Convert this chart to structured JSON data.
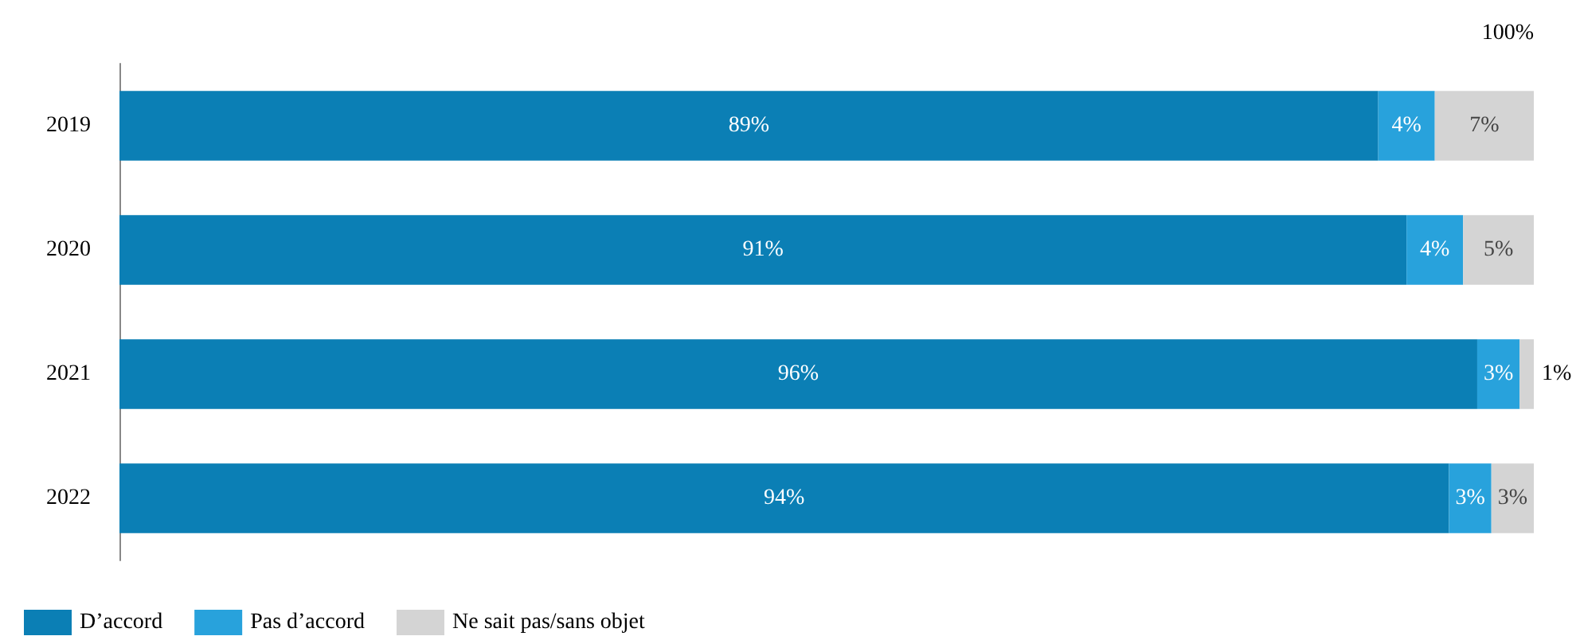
{
  "chart_data": {
    "type": "bar",
    "orientation": "horizontal",
    "stacked": true,
    "categories": [
      "2019",
      "2020",
      "2021",
      "2022"
    ],
    "series": [
      {
        "name": "D’accord",
        "color": "#0b7fb5",
        "values": [
          89,
          91,
          96,
          94
        ],
        "value_labels": [
          "89%",
          "91%",
          "96%",
          "94%"
        ]
      },
      {
        "name": "Pas d’accord",
        "color": "#28a2dc",
        "values": [
          4,
          4,
          3,
          3
        ],
        "value_labels": [
          "4%",
          "4%",
          "3%",
          "3%"
        ]
      },
      {
        "name": "Ne sait pas/sans objet",
        "color": "#d4d4d4",
        "values": [
          7,
          5,
          1,
          3
        ],
        "value_labels": [
          "7%",
          "5%",
          "1%",
          "3%"
        ]
      }
    ],
    "annotations": [
      "100%"
    ],
    "legend": "bottom left"
  }
}
